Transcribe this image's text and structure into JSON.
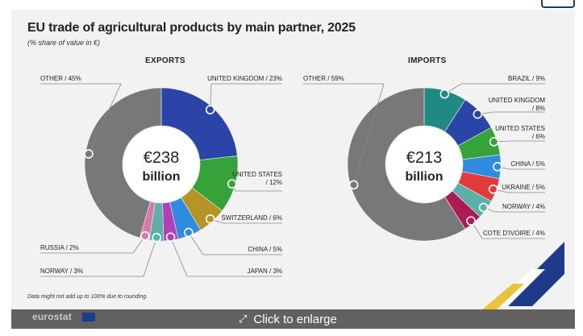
{
  "title": "EU trade of agricultural products by main partner, 2025",
  "subtitle": "(% share of value in €)",
  "footnote": "Data might not add up to 100% due to rounding.",
  "logo_text": "eurostat",
  "enlarge_label": "Click to enlarge",
  "colors": {
    "uk": "#2a44a8",
    "us": "#35a33a",
    "switzerland": "#b59423",
    "china": "#2f8be0",
    "japan": "#b23fb7",
    "norway": "#5bb0aa",
    "russia": "#d978ad",
    "other": "#787878",
    "brazil": "#1f8a83",
    "ukraine": "#e03a3a",
    "cote_divoire": "#ad1a54"
  },
  "chart_data": [
    {
      "type": "pie",
      "title": "EXPORTS",
      "center_value": "€238",
      "center_unit": "billion",
      "slices": [
        {
          "name": "UNITED KINGDOM",
          "value": 23,
          "label": "UNITED KINGDOM / 23%",
          "color": "#2a44a8"
        },
        {
          "name": "UNITED STATES",
          "value": 12,
          "label_lines": [
            "UNITED STATES",
            "/ 12%"
          ],
          "color": "#35a33a"
        },
        {
          "name": "SWITZERLAND",
          "value": 6,
          "label": "SWITZERLAND / 6%",
          "color": "#b59423"
        },
        {
          "name": "CHINA",
          "value": 5,
          "label": "CHINA / 5%",
          "color": "#2f8be0"
        },
        {
          "name": "JAPAN",
          "value": 3,
          "label": "JAPAN / 3%",
          "color": "#b23fb7"
        },
        {
          "name": "NORWAY",
          "value": 3,
          "label": "NORWAY / 3%",
          "color": "#5bb0aa"
        },
        {
          "name": "RUSSIA",
          "value": 2,
          "label": "RUSSIA / 2%",
          "color": "#d978ad"
        },
        {
          "name": "OTHER",
          "value": 45,
          "label": "OTHER / 45%",
          "color": "#787878"
        }
      ]
    },
    {
      "type": "pie",
      "title": "IMPORTS",
      "center_value": "€213",
      "center_unit": "billion",
      "slices": [
        {
          "name": "BRAZIL",
          "value": 9,
          "label": "BRAZIL / 9%",
          "color": "#1f8a83"
        },
        {
          "name": "UNITED KINGDOM",
          "value": 8,
          "label_lines": [
            "UNITED KINGDOM",
            "/ 8%"
          ],
          "color": "#2a44a8"
        },
        {
          "name": "UNITED STATES",
          "value": 6,
          "label_lines": [
            "UNITED STATES",
            "/ 6%"
          ],
          "color": "#35a33a"
        },
        {
          "name": "CHINA",
          "value": 5,
          "label": "CHINA / 5%",
          "color": "#2f8be0"
        },
        {
          "name": "UKRAINE",
          "value": 5,
          "label": "UKRAINE / 5%",
          "color": "#e03a3a"
        },
        {
          "name": "NORWAY",
          "value": 4,
          "label": "NORWAY / 4%",
          "color": "#5bb0aa"
        },
        {
          "name": "COTE D'IVOIRE",
          "value": 4,
          "label": "COTE D'IVOIRE / 4%",
          "color": "#ad1a54"
        },
        {
          "name": "OTHER",
          "value": 59,
          "label": "OTHER / 59%",
          "color": "#787878"
        }
      ]
    }
  ]
}
